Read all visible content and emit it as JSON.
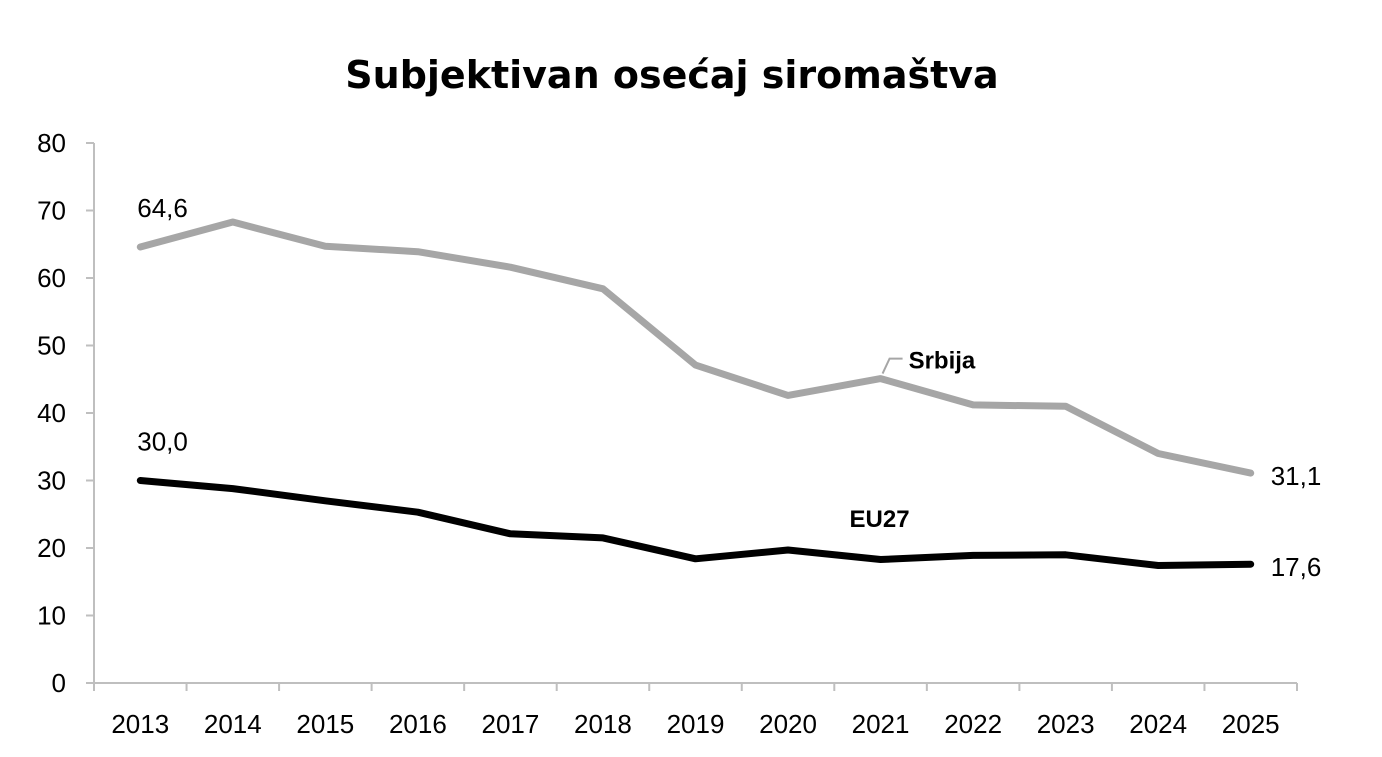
{
  "chart_data": {
    "type": "line",
    "title": "Subjektivan osećaj siromaštva",
    "xlabel": "",
    "ylabel": "",
    "ylim": [
      0,
      80
    ],
    "yticks": [
      "0",
      "10",
      "20",
      "30",
      "40",
      "50",
      "60",
      "70",
      "80"
    ],
    "categories": [
      "2013",
      "2014",
      "2015",
      "2016",
      "2017",
      "2018",
      "2019",
      "2020",
      "2021",
      "2022",
      "2023",
      "2024",
      "2025"
    ],
    "grid": false,
    "legend": "none",
    "series": [
      {
        "name": "Srbija",
        "color": "#a6a6a6",
        "values": [
          64.6,
          68.3,
          64.7,
          63.9,
          61.6,
          58.4,
          47.1,
          42.6,
          45.1,
          41.2,
          41.0,
          34.0,
          31.1
        ],
        "data_labels": [
          {
            "index": 0,
            "text": "64,6"
          },
          {
            "index": 12,
            "text": "31,1"
          }
        ]
      },
      {
        "name": "EU27",
        "color": "#000000",
        "values": [
          30.0,
          28.8,
          27.0,
          25.3,
          22.1,
          21.5,
          18.4,
          19.7,
          18.3,
          18.9,
          19.0,
          17.4,
          17.6
        ],
        "data_labels": [
          {
            "index": 0,
            "text": "30,0"
          },
          {
            "index": 12,
            "text": "17,6"
          }
        ]
      }
    ]
  }
}
